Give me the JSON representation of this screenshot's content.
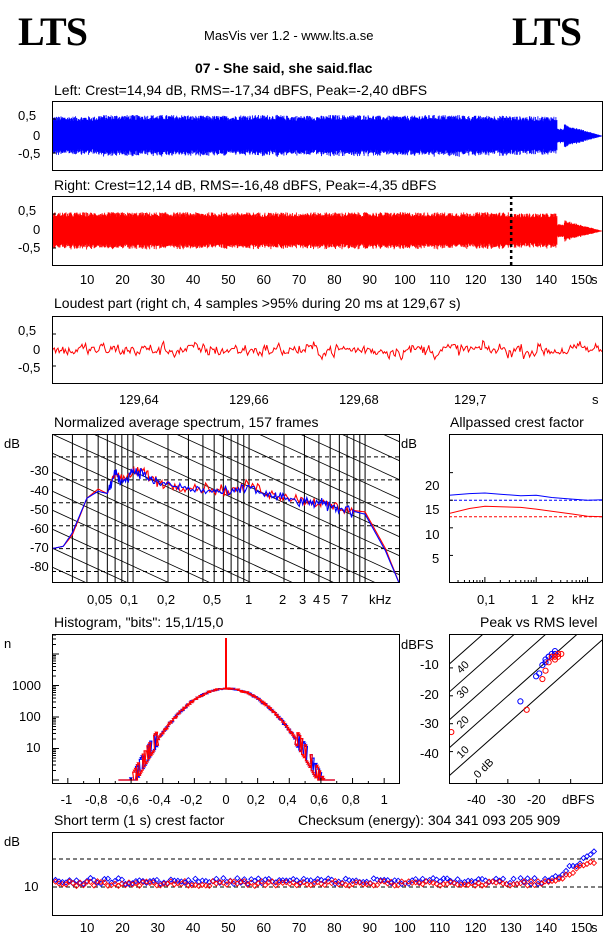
{
  "header": {
    "logo_left": "LTS",
    "logo_right": "LTS",
    "app_title": "MasVis ver 1.2 - www.lts.a.se",
    "track_title": "07 - She said, she said.flac"
  },
  "panels": {
    "left_wave": {
      "title": "Left: Crest=14,94 dB, RMS=-17,34 dBFS, Peak=-2,40 dBFS",
      "ticks": [
        "0,5",
        "0",
        "-0,5"
      ],
      "color": "#0000ff"
    },
    "right_wave": {
      "title": "Right: Crest=12,14 dB, RMS=-16,48 dBFS, Peak=-4,35 dBFS",
      "ticks": [
        "0,5",
        "0",
        "-0,5"
      ],
      "color": "#ff0000",
      "marker_x": 130
    },
    "time_axis": {
      "labels": [
        "10",
        "20",
        "30",
        "40",
        "50",
        "60",
        "70",
        "80",
        "90",
        "100",
        "110",
        "120",
        "130",
        "140",
        "150"
      ],
      "unit": "s"
    },
    "loudest": {
      "title": "Loudest part (right ch, 4 samples >95% during 20 ms at 129,67 s)",
      "ticks": [
        "0,5",
        "0",
        "-0,5"
      ],
      "x_labels": [
        "129,64",
        "129,66",
        "129,68",
        "129,7"
      ],
      "unit": "s"
    },
    "spectrum": {
      "title": "Normalized average spectrum, 157 frames",
      "ylabel": "dB",
      "y_ticks": [
        "-30",
        "-40",
        "-50",
        "-60",
        "-70",
        "-80"
      ],
      "x_labels": [
        "0,05",
        "0,1",
        "0,2",
        "0,5",
        "1",
        "2",
        "3",
        "4",
        "5",
        "7"
      ],
      "unit": "kHz"
    },
    "allpass": {
      "title": "Allpassed crest factor",
      "ylabel": "dB",
      "y_ticks": [
        "20",
        "15",
        "10",
        "5"
      ],
      "x_labels": [
        "0,1",
        "1",
        "2"
      ],
      "unit": "kHz"
    },
    "histogram": {
      "title": "Histogram, \"bits\": 15,1/15,0",
      "ylabel": "n",
      "y_ticks": [
        "1000",
        "100",
        "10"
      ],
      "x_labels": [
        "-1",
        "-0,8",
        "-0,6",
        "-0,4",
        "-0,2",
        "0",
        "0,2",
        "0,4",
        "0,6",
        "0,8",
        "1"
      ]
    },
    "peak_rms": {
      "title": "Peak vs RMS level",
      "ylabel": "dBFS",
      "y_ticks": [
        "-10",
        "-20",
        "-30",
        "-40"
      ],
      "x_labels": [
        "-40",
        "-30",
        "-20"
      ],
      "unit": "dBFS",
      "diag_labels": [
        "40",
        "30",
        "20",
        "10",
        "0 dB"
      ]
    },
    "short_term": {
      "title": "Short term (1 s) crest factor",
      "checksum": "Checksum (energy):   304 341 093 205 909",
      "ylabel": "dB",
      "y_ticks": [
        "10"
      ]
    }
  },
  "chart_data": [
    {
      "type": "line",
      "title": "Left: Crest=14,94 dB, RMS=-17,34 dBFS, Peak=-2,40 dBFS",
      "ylim": [
        -1,
        1
      ],
      "x_range": [
        0,
        156
      ],
      "envelope": [
        0.58,
        0.62,
        0.62,
        0.6,
        0.62,
        0.6,
        0.62,
        0.6,
        0.62,
        0.6,
        0.58,
        0.22
      ]
    },
    {
      "type": "line",
      "title": "Right: Crest=12,14 dB, RMS=-16,48 dBFS, Peak=-4,35 dBFS",
      "ylim": [
        -1,
        1
      ],
      "x_range": [
        0,
        156
      ],
      "envelope": [
        0.55,
        0.55,
        0.55,
        0.55,
        0.55,
        0.55,
        0.55,
        0.55,
        0.55,
        0.55,
        0.52,
        0.2
      ]
    },
    {
      "type": "line",
      "title": "Loudest part (right ch, 4 samples >95% during 20 ms at 129,67 s)",
      "ylim": [
        -1,
        1
      ],
      "x_range": [
        129.625,
        129.73
      ]
    },
    {
      "type": "line",
      "title": "Normalized average spectrum, 157 frames",
      "xlabel": "kHz",
      "ylabel": "dB",
      "ylim": [
        -85,
        -20
      ],
      "x": [
        0.02,
        0.025,
        0.03,
        0.04,
        0.05,
        0.06,
        0.07,
        0.08,
        0.1,
        0.12,
        0.15,
        0.2,
        0.3,
        0.5,
        0.7,
        1,
        1.5,
        2,
        3,
        4,
        5,
        7,
        10,
        15,
        20
      ],
      "series": [
        {
          "values": [
            -70,
            -69,
            -64,
            -48,
            -44,
            -46,
            -36,
            -40,
            -37,
            -36,
            -40,
            -42,
            -43,
            -44,
            -45,
            -42,
            -46,
            -47,
            -49,
            -50,
            -51,
            -53,
            -54,
            -70,
            -86
          ]
        },
        {
          "values": [
            -70,
            -69,
            -63,
            -48,
            -45,
            -46,
            -37,
            -41,
            -36,
            -37,
            -41,
            -42,
            -44,
            -45,
            -46,
            -43,
            -47,
            -48,
            -50,
            -50,
            -52,
            -53,
            -55,
            -71,
            -86
          ]
        }
      ]
    },
    {
      "type": "line",
      "title": "Allpassed crest factor",
      "xlabel": "kHz",
      "ylabel": "dB",
      "ylim": [
        0,
        25
      ],
      "x": [
        0.02,
        0.05,
        0.1,
        0.2,
        0.5,
        1,
        2,
        5,
        10,
        20
      ],
      "series": [
        {
          "values": [
            15.9,
            16.2,
            16.3,
            16.1,
            15.8,
            15.9,
            15.5,
            15.2,
            15.0,
            15.1
          ],
          "ref": 15
        },
        {
          "values": [
            12.6,
            13.5,
            13.9,
            13.8,
            13.7,
            13.4,
            13.0,
            12.5,
            12.1,
            12.0
          ],
          "ref": 12
        }
      ]
    },
    {
      "type": "line",
      "title": "Histogram, \"bits\": 15,1/15,0",
      "ylabel": "n",
      "xlim": [
        -1.1,
        1.1
      ],
      "ylog": [
        1,
        100000
      ],
      "x": [
        -0.65,
        -0.6,
        -0.5,
        -0.4,
        -0.3,
        -0.2,
        -0.1,
        0,
        0.1,
        0.2,
        0.3,
        0.4,
        0.5,
        0.6,
        0.65
      ],
      "series": [
        {
          "values": [
            2,
            4,
            20,
            70,
            200,
            450,
            700,
            800,
            700,
            450,
            200,
            70,
            20,
            4,
            2
          ]
        },
        {
          "values": [
            2,
            4,
            20,
            70,
            200,
            450,
            700,
            800,
            700,
            450,
            200,
            70,
            20,
            4,
            2
          ]
        }
      ]
    },
    {
      "type": "scatter",
      "title": "Peak vs RMS level",
      "ylabel": "dBFS",
      "xlim": [
        -50,
        0
      ],
      "ylim": [
        -50,
        0
      ],
      "series": [
        {
          "x": [
            -17,
            -16,
            -15,
            -18,
            -19,
            -20,
            -26,
            -21,
            -16,
            -15,
            -17,
            -18
          ],
          "y": [
            -6,
            -5,
            -4,
            -7,
            -9,
            -12,
            -22,
            -13,
            -6,
            -5,
            -6,
            -8
          ]
        },
        {
          "x": [
            -15,
            -14,
            -13,
            -16,
            -17,
            -18,
            -24,
            -19,
            -14,
            -15,
            -48
          ],
          "y": [
            -6,
            -5,
            -5,
            -6,
            -8,
            -11,
            -25,
            -14,
            -6,
            -7,
            -33
          ]
        }
      ]
    },
    {
      "type": "scatter",
      "title": "Short term (1 s) crest factor",
      "ylabel": "dB",
      "ylog": [
        5,
        25
      ],
      "x_range": [
        0,
        156
      ],
      "y_baseline": 10.5
    }
  ]
}
